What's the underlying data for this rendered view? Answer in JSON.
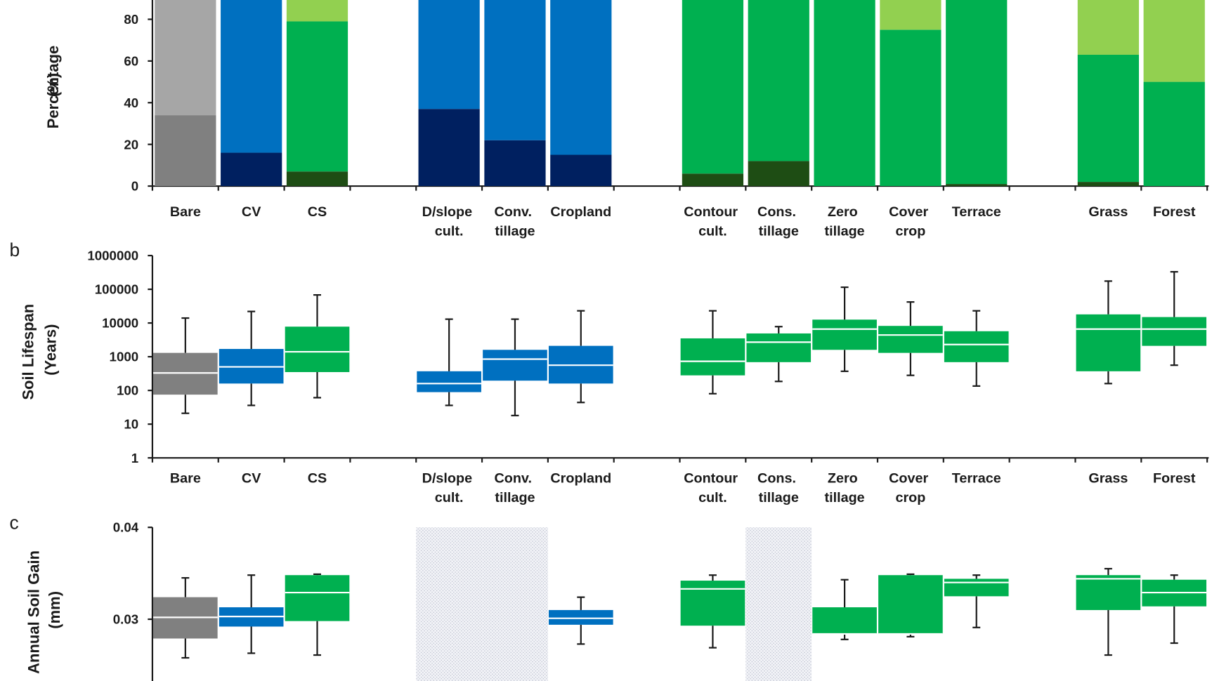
{
  "chart_data": [
    {
      "type": "stacked-bar",
      "ylabel": "Percentage (%)",
      "categories": [
        "Bare",
        "CV",
        "CS",
        null,
        "D/slope cult.",
        "Conv. tillage",
        "Cropland",
        null,
        "Contour cult.",
        "Cons. tillage",
        "Zero tillage",
        "Cover crop",
        "Terrace",
        null,
        "Grass",
        "Forest"
      ],
      "series": [
        {
          "values": [
            34,
            16,
            7,
            null,
            37,
            22,
            15,
            null,
            6,
            12,
            0,
            0,
            1,
            null,
            2,
            0
          ],
          "colors": [
            "#808080",
            "#002060",
            "#1e4d14",
            null,
            "#002060",
            "#002060",
            "#002060",
            null,
            "#1e4d14",
            "#1e4d14",
            "#1e4d14",
            "#1e4d14",
            "#1e4d14",
            null,
            "#1e4d14",
            "#1e4d14"
          ]
        },
        {
          "values": [
            66,
            84,
            72,
            null,
            63,
            78,
            85,
            null,
            94,
            88,
            100,
            75,
            99,
            null,
            61,
            50
          ],
          "colors": [
            "#a6a6a6",
            "#0070c0",
            "#00b050",
            null,
            "#0070c0",
            "#0070c0",
            "#0070c0",
            null,
            "#00b050",
            "#00b050",
            "#00b050",
            "#00b050",
            "#00b050",
            null,
            "#00b050",
            "#00b050"
          ]
        },
        {
          "values": [
            0,
            0,
            21,
            null,
            0,
            0,
            0,
            null,
            0,
            0,
            0,
            25,
            0,
            null,
            37,
            50
          ],
          "colors": [
            "#a6a6a6",
            "#0070c0",
            "#92d050",
            null,
            "#0070c0",
            "#0070c0",
            "#0070c0",
            null,
            "#92d050",
            "#92d050",
            "#92d050",
            "#92d050",
            "#92d050",
            null,
            "#92d050",
            "#92d050"
          ]
        }
      ],
      "ylim": [
        0,
        100
      ],
      "yticks": [
        0,
        20,
        40,
        60,
        80
      ]
    },
    {
      "type": "box",
      "label": "b",
      "log_scale": true,
      "ylabel": "Soil Lifespan (Years)",
      "categories": [
        "Bare",
        "CV",
        "CS",
        null,
        "D/slope cult.",
        "Conv. tillage",
        "Cropland",
        null,
        "Contour cult.",
        "Cons. tillage",
        "Zero tillage",
        "Cover crop",
        "Terrace",
        null,
        "Grass",
        "Forest"
      ],
      "boxes": [
        {
          "low": 21,
          "q1": 75,
          "median": 330,
          "q3": 1300,
          "high": 14000
        },
        {
          "low": 36,
          "q1": 160,
          "median": 500,
          "q3": 1700,
          "high": 22000
        },
        {
          "low": 61,
          "q1": 350,
          "median": 1400,
          "q3": 7800,
          "high": 68000
        },
        null,
        {
          "low": 36,
          "q1": 89,
          "median": 160,
          "q3": 370,
          "high": 13000
        },
        {
          "low": 18,
          "q1": 195,
          "median": 850,
          "q3": 1600,
          "high": 13000
        },
        {
          "low": 44,
          "q1": 160,
          "median": 560,
          "q3": 2100,
          "high": 23000
        },
        null,
        {
          "low": 80,
          "q1": 280,
          "median": 730,
          "q3": 3500,
          "high": 23000
        },
        {
          "low": 185,
          "q1": 690,
          "median": 2700,
          "q3": 4900,
          "high": 7800
        },
        {
          "low": 370,
          "q1": 1600,
          "median": 6600,
          "q3": 12600,
          "high": 115000
        },
        {
          "low": 280,
          "q1": 1300,
          "median": 4400,
          "q3": 8200,
          "high": 42000
        },
        {
          "low": 135,
          "q1": 690,
          "median": 2300,
          "q3": 5700,
          "high": 23000
        },
        null,
        {
          "low": 160,
          "q1": 370,
          "median": 6600,
          "q3": 18000,
          "high": 175000
        },
        {
          "low": 560,
          "q1": 2100,
          "median": 6600,
          "q3": 15000,
          "high": 330000
        }
      ],
      "colors": [
        "#808080",
        "#0070c0",
        "#00b050",
        null,
        "#0070c0",
        "#0070c0",
        "#0070c0",
        null,
        "#00b050",
        "#00b050",
        "#00b050",
        "#00b050",
        "#00b050",
        null,
        "#00b050",
        "#00b050"
      ],
      "ylim": [
        1,
        1000000
      ],
      "yticks": [
        1,
        10,
        100,
        1000,
        10000,
        100000,
        1000000
      ]
    },
    {
      "type": "box",
      "label": "c",
      "ylabel": "Annual Soil Gain (mm)",
      "boxes": [
        {
          "low": 0.0258,
          "q1": 0.0279,
          "median": 0.0302,
          "q3": 0.0324,
          "high": 0.0345
        },
        {
          "low": 0.0263,
          "q1": 0.0292,
          "median": 0.0303,
          "q3": 0.0313,
          "high": 0.0348
        },
        {
          "low": 0.0261,
          "q1": 0.0298,
          "median": 0.0329,
          "q3": 0.0348,
          "high": 0.0349
        },
        null,
        null,
        null,
        {
          "low": 0.0273,
          "q1": 0.0294,
          "median": 0.0301,
          "q3": 0.031,
          "high": 0.0324
        },
        null,
        {
          "low": 0.0269,
          "q1": 0.0293,
          "median": 0.0333,
          "q3": 0.0342,
          "high": 0.0348
        },
        null,
        {
          "low": 0.0278,
          "q1": 0.0284,
          "median": 0.0284,
          "q3": 0.0313,
          "high": 0.0343
        },
        {
          "low": 0.0281,
          "q1": 0.0284,
          "median": 0.0284,
          "q3": 0.0348,
          "high": 0.0349
        },
        {
          "low": 0.0291,
          "q1": 0.0325,
          "median": 0.034,
          "q3": 0.0344,
          "high": 0.0348
        },
        null,
        {
          "low": 0.0261,
          "q1": 0.031,
          "median": 0.0344,
          "q3": 0.0348,
          "high": 0.0355
        },
        {
          "low": 0.0274,
          "q1": 0.0314,
          "median": 0.0329,
          "q3": 0.0343,
          "high": 0.0348
        }
      ],
      "no_data": [
        false,
        false,
        false,
        false,
        true,
        true,
        false,
        false,
        false,
        true,
        false,
        false,
        false,
        false,
        false,
        false
      ],
      "colors": [
        "#808080",
        "#0070c0",
        "#00b050",
        null,
        "#0070c0",
        "#0070c0",
        "#0070c0",
        null,
        "#00b050",
        "#00b050",
        "#00b050",
        "#00b050",
        "#00b050",
        null,
        "#00b050",
        "#00b050"
      ],
      "ylim": [
        0.02,
        0.04
      ],
      "yticks": [
        0.04,
        0.03
      ]
    }
  ]
}
